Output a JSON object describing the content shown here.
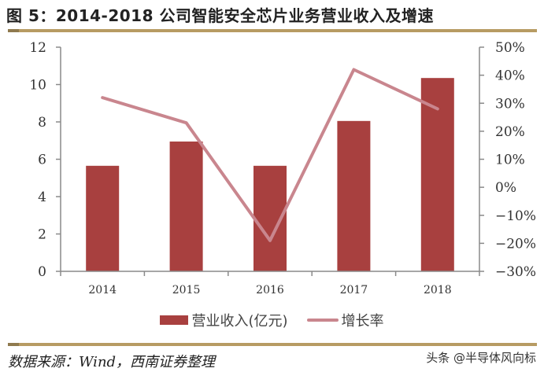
{
  "title": "图 5：2014-2018 公司智能安全芯片业务营业收入及增速",
  "chart_data": {
    "type": "bar",
    "title": "2014-2018 公司智能安全芯片业务营业收入及增速",
    "categories": [
      "2014",
      "2015",
      "2016",
      "2017",
      "2018"
    ],
    "series": [
      {
        "name": "营业收入(亿元)",
        "type": "bar",
        "axis": "left",
        "color": "#a8403f",
        "values": [
          5.65,
          6.95,
          5.65,
          8.05,
          10.35
        ]
      },
      {
        "name": "增长率",
        "type": "line",
        "axis": "right",
        "color": "#c9868e",
        "values": [
          32,
          23,
          -19,
          42,
          28
        ],
        "unit": "%"
      }
    ],
    "xlabel": "",
    "ylabel": "",
    "ylim": [
      0,
      12
    ],
    "y2lim": [
      -30,
      50
    ],
    "left_ticks": [
      "0",
      "2",
      "4",
      "6",
      "8",
      "10",
      "12"
    ],
    "right_ticks": [
      "-30%",
      "-20%",
      "-10%",
      "0%",
      "10%",
      "20%",
      "30%",
      "40%",
      "50%"
    ],
    "grid": false,
    "legend_position": "bottom"
  },
  "legend": {
    "bar_label": "营业收入(亿元)",
    "line_label": "增长率"
  },
  "footer": {
    "source": "数据来源：Wind，西南证券整理",
    "watermark": "头条 @半导体风向标"
  }
}
